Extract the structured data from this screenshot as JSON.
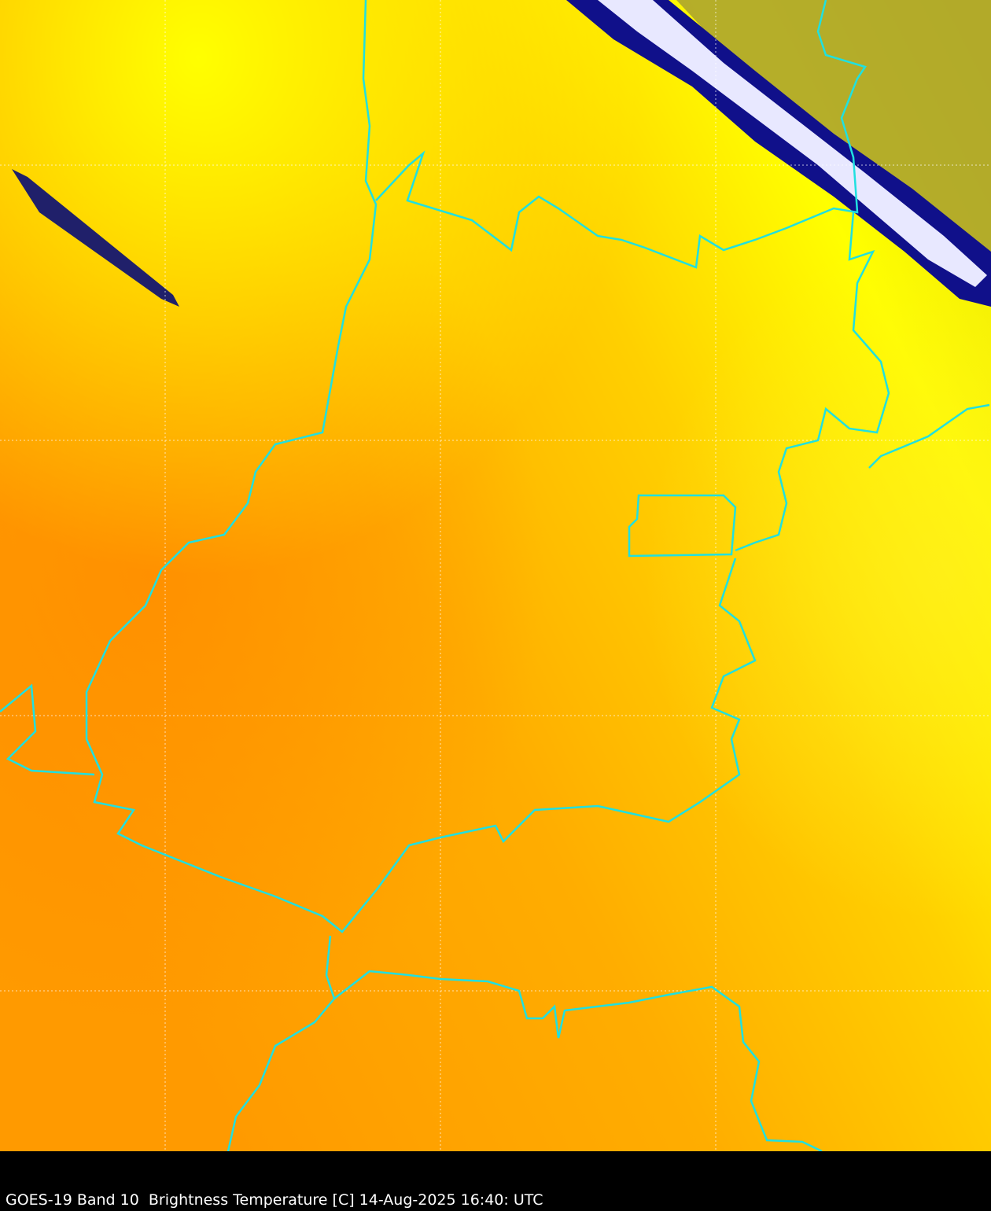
{
  "caption": "GOES-19 Band 10  Brightness Temperature [C] 14-Aug-2025 16:40: UTC",
  "colors": {
    "warm": "#ff9a00",
    "mid": "#ffb800",
    "cool": "#ffff00",
    "cloud_dark": "#000080",
    "cloud_cold": "#e8e8ff",
    "boundary": "#20e0e0",
    "background": "#000000"
  }
}
